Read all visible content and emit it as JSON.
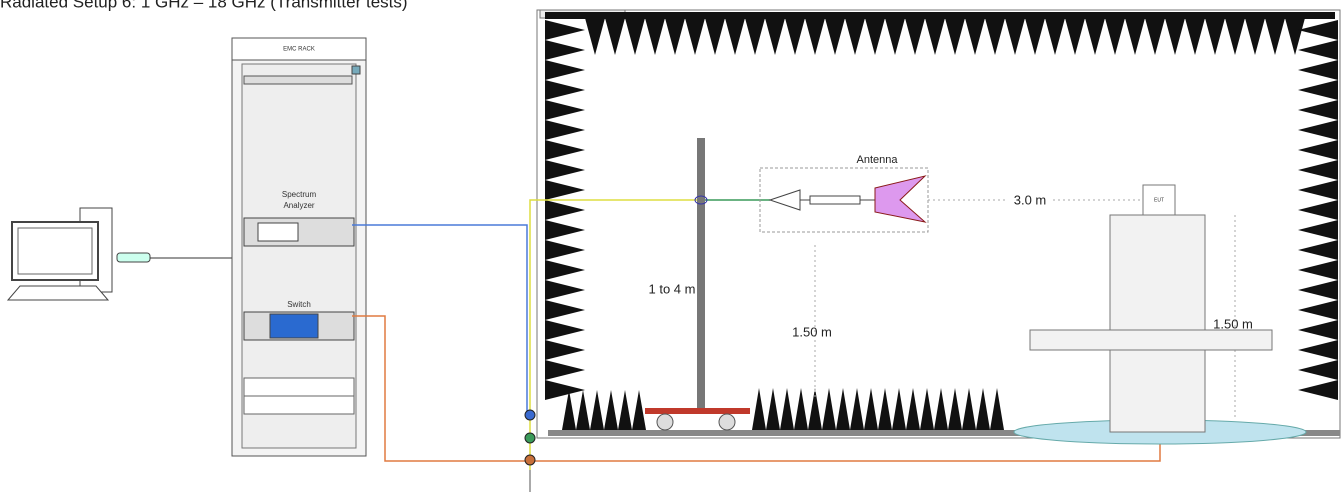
{
  "header": {
    "title": "Radiated Setup 6: 1 GHz – 18 GHz (Transmitter tests)"
  },
  "rack": {
    "label": "EMC RACK",
    "analyzer_label": [
      "Spectrum",
      "Analyzer"
    ],
    "switch_label": "Switch"
  },
  "chamber": {
    "antenna_label": "Antenna",
    "distance_label": "3.0 m",
    "mast_label": "1 to 4 m",
    "antenna_height_label": "1.50 m",
    "table_height_label": "1.50 m",
    "eut_label": "EUT"
  }
}
